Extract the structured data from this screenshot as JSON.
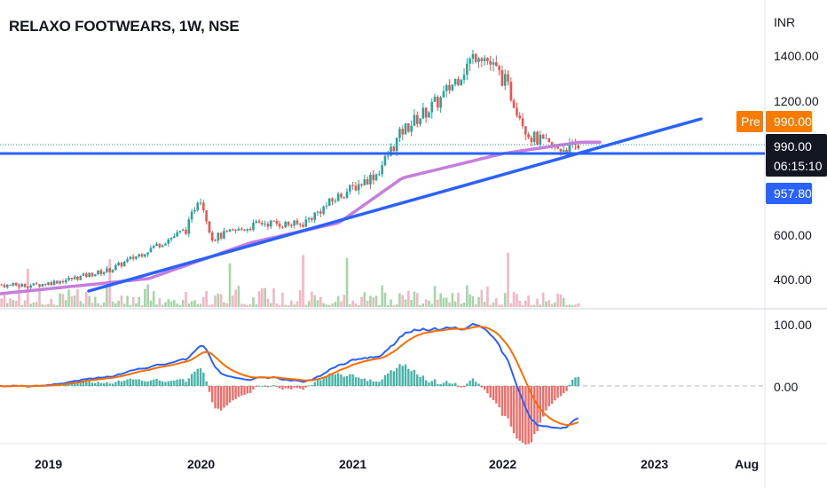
{
  "header": {
    "title": "RELAXO FOOTWEARS, 1W, NSE"
  },
  "price_axis": {
    "currency": "INR",
    "ticks": [
      "1400.00",
      "1200.00",
      "600.00",
      "400.00"
    ]
  },
  "price_tags": {
    "pre_label": "Pre",
    "pre_price": "990.00",
    "last_price": "990.00",
    "countdown": "06:15:10",
    "line_price": "957.80"
  },
  "indicator_axis": {
    "ticks": [
      "100.00",
      "0.00"
    ]
  },
  "time_axis": {
    "labels": [
      "2019",
      "2020",
      "2021",
      "2022",
      "2023",
      "Aug"
    ]
  },
  "colors": {
    "up": "#26a69a",
    "down": "#ef5350",
    "up_volume": "#a5d6a7",
    "down_volume": "#f4b6c2",
    "moving_average": "#c77ddb",
    "trendline": "#2962ff",
    "macd_line": "#2962ff",
    "signal_line": "#ff6d00",
    "pre_tag": "#f57c00",
    "last_tag": "#131722",
    "line_tag": "#2962ff"
  },
  "chart_data": {
    "type": "candlestick",
    "symbol": "RELAXO FOOTWEARS",
    "interval": "1W",
    "exchange": "NSE",
    "y_axis": {
      "unit": "INR",
      "ticks": [
        1400,
        1200,
        600,
        400
      ]
    },
    "approx_closes": [
      {
        "date": "2018-09",
        "close": 370
      },
      {
        "date": "2019-01",
        "close": 370
      },
      {
        "date": "2019-04",
        "close": 400
      },
      {
        "date": "2019-07",
        "close": 440
      },
      {
        "date": "2019-10",
        "close": 530
      },
      {
        "date": "2020-01",
        "close": 620
      },
      {
        "date": "2020-02",
        "close": 780
      },
      {
        "date": "2020-03",
        "close": 580
      },
      {
        "date": "2020-07",
        "close": 650
      },
      {
        "date": "2020-10",
        "close": 640
      },
      {
        "date": "2021-01",
        "close": 770
      },
      {
        "date": "2021-04",
        "close": 870
      },
      {
        "date": "2021-06",
        "close": 1060
      },
      {
        "date": "2021-09",
        "close": 1200
      },
      {
        "date": "2021-12",
        "close": 1420
      },
      {
        "date": "2022-02",
        "close": 1290
      },
      {
        "date": "2022-04",
        "close": 1040
      },
      {
        "date": "2022-06",
        "close": 980
      },
      {
        "date": "2022-08",
        "close": 990
      }
    ],
    "moving_average_approx": [
      {
        "date": "2018-09",
        "value": 325
      },
      {
        "date": "2019-10",
        "value": 400
      },
      {
        "date": "2020-06",
        "value": 560
      },
      {
        "date": "2021-01",
        "value": 650
      },
      {
        "date": "2021-06",
        "value": 850
      },
      {
        "date": "2022-02",
        "value": 960
      },
      {
        "date": "2022-08",
        "value": 1010
      }
    ],
    "horizontal_line": 957.8,
    "last_price": 990.0,
    "pre_market_price": 990.0,
    "macd_axis": {
      "ticks": [
        100,
        0
      ]
    }
  }
}
